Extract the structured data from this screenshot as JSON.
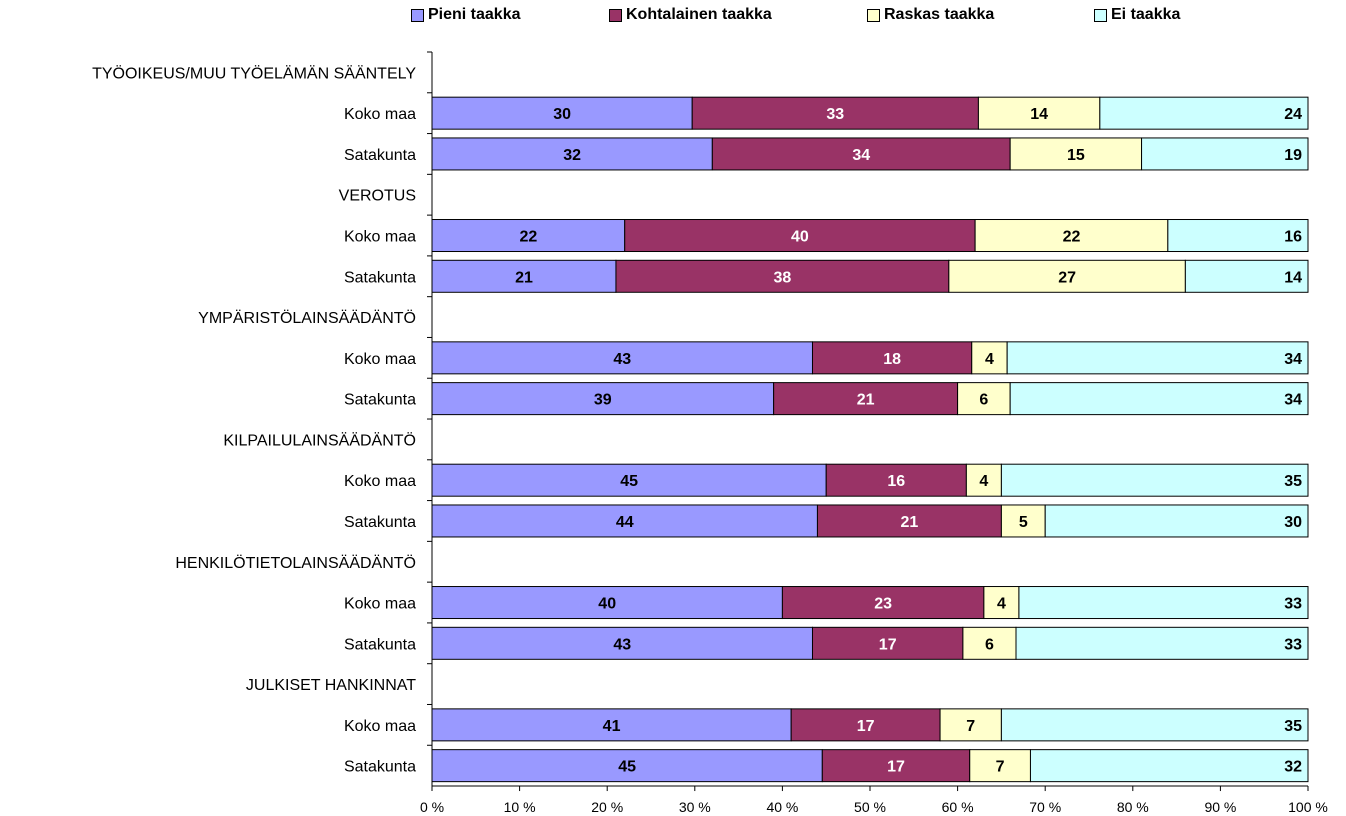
{
  "chart_data": {
    "type": "bar",
    "orientation": "horizontal",
    "stacked": "percent",
    "legend": {
      "position": "top",
      "entries": [
        "Pieni taakka",
        "Kohtalainen taakka",
        "Raskas taakka",
        "Ei taakka"
      ]
    },
    "colors": [
      "#9999ff",
      "#993366",
      "#ffffcc",
      "#ccffff"
    ],
    "label_colors": [
      "#000000",
      "#ffffff",
      "#000000",
      "#000000"
    ],
    "xlim": [
      0,
      100
    ],
    "x_ticks": [
      "0 %",
      "10 %",
      "20 %",
      "30 %",
      "40 %",
      "50 %",
      "60 %",
      "70 %",
      "80 %",
      "90 %",
      "100 %"
    ],
    "grid": false,
    "rows": [
      {
        "label": "TYÖOIKEUS/MUU TYÖELÄMÄN SÄÄNTELY",
        "header": true
      },
      {
        "label": "Koko maa",
        "values": [
          30,
          33,
          14,
          24
        ]
      },
      {
        "label": "Satakunta",
        "values": [
          32,
          34,
          15,
          19
        ]
      },
      {
        "label": "VEROTUS",
        "header": true
      },
      {
        "label": "Koko maa",
        "values": [
          22,
          40,
          22,
          16
        ]
      },
      {
        "label": "Satakunta",
        "values": [
          21,
          38,
          27,
          14
        ]
      },
      {
        "label": "YMPÄRISTÖLAINSÄÄDÄNTÖ",
        "header": true
      },
      {
        "label": "Koko maa",
        "values": [
          43,
          18,
          4,
          34
        ]
      },
      {
        "label": "Satakunta",
        "values": [
          39,
          21,
          6,
          34
        ]
      },
      {
        "label": "KILPAILULAINSÄÄDÄNTÖ",
        "header": true
      },
      {
        "label": "Koko maa",
        "values": [
          45,
          16,
          4,
          35
        ]
      },
      {
        "label": "Satakunta",
        "values": [
          44,
          21,
          5,
          30
        ]
      },
      {
        "label": "HENKILÖTIETOLAINSÄÄDÄNTÖ",
        "header": true
      },
      {
        "label": "Koko maa",
        "values": [
          40,
          23,
          4,
          33
        ]
      },
      {
        "label": "Satakunta",
        "values": [
          43,
          17,
          6,
          33
        ]
      },
      {
        "label": "JULKISET HANKINNAT",
        "header": true
      },
      {
        "label": "Koko maa",
        "values": [
          41,
          17,
          7,
          35
        ]
      },
      {
        "label": "Satakunta",
        "values": [
          45,
          17,
          7,
          32
        ]
      }
    ]
  }
}
